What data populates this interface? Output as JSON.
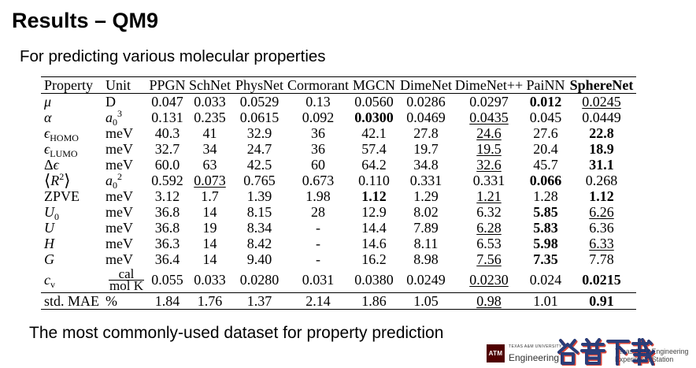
{
  "title": "Results – QM9",
  "subtitle": "For predicting various molecular properties",
  "footer": "The most commonly-used dataset for property prediction",
  "colors": {
    "logo_maroon": "#500000",
    "watermark_blue": "#1b2f6e",
    "watermark_red": "#d9382a"
  },
  "table": {
    "headers": [
      "Property",
      "Unit",
      "PPGN",
      "SchNet",
      "PhysNet",
      "Cormorant",
      "MGCN",
      "DimeNet",
      "DimeNet++",
      "PaiNN",
      "SphereNet"
    ],
    "bold_headers": [
      10
    ],
    "rows": [
      {
        "property": {
          "main": "μ",
          "italic": true
        },
        "unit": {
          "main": "D"
        },
        "values": [
          "0.047",
          "0.033",
          "0.0529",
          "0.13",
          "0.0560",
          "0.0286",
          "0.0297",
          "0.012",
          "0.0245"
        ],
        "bold": [
          7
        ],
        "underline": [
          8
        ]
      },
      {
        "property": {
          "main": "α",
          "italic": true
        },
        "unit": {
          "main": "a",
          "italic": true,
          "sub": "0",
          "sup": "3"
        },
        "values": [
          "0.131",
          "0.235",
          "0.0615",
          "0.092",
          "0.0300",
          "0.0469",
          "0.0435",
          "0.045",
          "0.0449"
        ],
        "bold": [
          4
        ],
        "underline": [
          6
        ]
      },
      {
        "property": {
          "main": "ϵ",
          "italic": true,
          "sub": "HOMO"
        },
        "unit": {
          "main": "meV"
        },
        "values": [
          "40.3",
          "41",
          "32.9",
          "36",
          "42.1",
          "27.8",
          "24.6",
          "27.6",
          "22.8"
        ],
        "bold": [
          8
        ],
        "underline": [
          6
        ]
      },
      {
        "property": {
          "main": "ϵ",
          "italic": true,
          "sub": "LUMO"
        },
        "unit": {
          "main": "meV"
        },
        "values": [
          "32.7",
          "34",
          "24.7",
          "36",
          "57.4",
          "19.7",
          "19.5",
          "20.4",
          "18.9"
        ],
        "bold": [
          8
        ],
        "underline": [
          6
        ]
      },
      {
        "property": {
          "lead": "Δ",
          "main": "ϵ",
          "italic": true
        },
        "unit": {
          "main": "meV"
        },
        "values": [
          "60.0",
          "63",
          "42.5",
          "60",
          "64.2",
          "34.8",
          "32.6",
          "45.7",
          "31.1"
        ],
        "bold": [
          8
        ],
        "underline": [
          6
        ]
      },
      {
        "property": {
          "lead": "⟨",
          "main": "R",
          "italic": true,
          "sup": "2",
          "trail": "⟩"
        },
        "unit": {
          "main": "a",
          "italic": true,
          "sub": "0",
          "sup": "2"
        },
        "values": [
          "0.592",
          "0.073",
          "0.765",
          "0.673",
          "0.110",
          "0.331",
          "0.331",
          "0.066",
          "0.268"
        ],
        "bold": [
          7
        ],
        "underline": [
          1
        ]
      },
      {
        "property": {
          "main": "ZPVE"
        },
        "unit": {
          "main": "meV"
        },
        "values": [
          "3.12",
          "1.7",
          "1.39",
          "1.98",
          "1.12",
          "1.29",
          "1.21",
          "1.28",
          "1.12"
        ],
        "bold": [
          4,
          8
        ],
        "underline": [
          6
        ]
      },
      {
        "property": {
          "main": "U",
          "italic": true,
          "sub": "0"
        },
        "unit": {
          "main": "meV"
        },
        "values": [
          "36.8",
          "14",
          "8.15",
          "28",
          "12.9",
          "8.02",
          "6.32",
          "5.85",
          "6.26"
        ],
        "bold": [
          7
        ],
        "underline": [
          8
        ]
      },
      {
        "property": {
          "main": "U",
          "italic": true
        },
        "unit": {
          "main": "meV"
        },
        "values": [
          "36.8",
          "19",
          "8.34",
          "-",
          "14.4",
          "7.89",
          "6.28",
          "5.83",
          "6.36"
        ],
        "bold": [
          7
        ],
        "underline": [
          6
        ]
      },
      {
        "property": {
          "main": "H",
          "italic": true
        },
        "unit": {
          "main": "meV"
        },
        "values": [
          "36.3",
          "14",
          "8.42",
          "-",
          "14.6",
          "8.11",
          "6.53",
          "5.98",
          "6.33"
        ],
        "bold": [
          7
        ],
        "underline": [
          8
        ]
      },
      {
        "property": {
          "main": "G",
          "italic": true
        },
        "unit": {
          "main": "meV"
        },
        "values": [
          "36.4",
          "14",
          "9.40",
          "-",
          "16.2",
          "8.98",
          "7.56",
          "7.35",
          "7.78"
        ],
        "bold": [
          7
        ],
        "underline": [
          6
        ]
      },
      {
        "property": {
          "main": "c",
          "italic": true,
          "sub": "v"
        },
        "unit": {
          "num": "cal",
          "den": "mol K"
        },
        "values": [
          "0.055",
          "0.033",
          "0.0280",
          "0.031",
          "0.0380",
          "0.0249",
          "0.0230",
          "0.024",
          "0.0215"
        ],
        "bold": [
          8
        ],
        "underline": [
          6
        ]
      },
      {
        "property": {
          "main": "std. MAE"
        },
        "unit": {
          "main": "%"
        },
        "values": [
          "1.84",
          "1.76",
          "1.37",
          "2.14",
          "1.86",
          "1.05",
          "0.98",
          "1.01",
          "0.91"
        ],
        "bold": [
          8
        ],
        "underline": [
          6
        ]
      }
    ]
  },
  "logos": {
    "mark": "ATM",
    "university": "TEXAS A&M UNIVERSITY",
    "college": "Engineering",
    "tees_line1": "Texas A&M Engineering",
    "tees_line2": "Experiment Station"
  },
  "watermark": "谷普下载"
}
